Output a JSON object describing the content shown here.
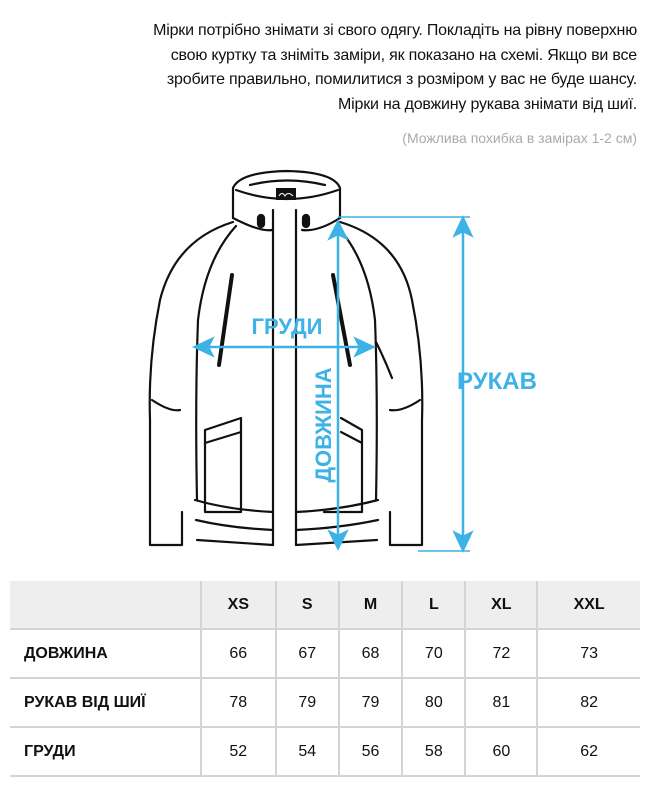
{
  "intro": {
    "lines": [
      "Мірки потрібно знімати зі свого одягу. Покладіть на рівну поверхню",
      "свою куртку та зніміть заміри, як показано на схемі. Якщо ви все",
      "зробите правильно, помилитися з розміром у вас не буде шансу.",
      "Мірки на довжину рукава знімати від шиї."
    ],
    "note": "(Можлива похибка в замірах 1-2 см)"
  },
  "diagram": {
    "accent_color": "#3db2e6",
    "chest_label": "ГРУДИ",
    "length_label": "ДОВЖИНА",
    "sleeve_label": "РУКАВ",
    "logo_icon": "brand-tag-logo"
  },
  "size_table": {
    "headers": [
      "",
      "XS",
      "S",
      "M",
      "L",
      "XL",
      "XXL"
    ],
    "rows": [
      {
        "label": "ДОВЖИНА",
        "values": [
          "66",
          "67",
          "68",
          "70",
          "72",
          "73"
        ]
      },
      {
        "label": "РУКАВ ВІД ШИЇ",
        "values": [
          "78",
          "79",
          "79",
          "80",
          "81",
          "82"
        ]
      },
      {
        "label": "ГРУДИ",
        "values": [
          "52",
          "54",
          "56",
          "58",
          "60",
          "62"
        ]
      }
    ]
  }
}
